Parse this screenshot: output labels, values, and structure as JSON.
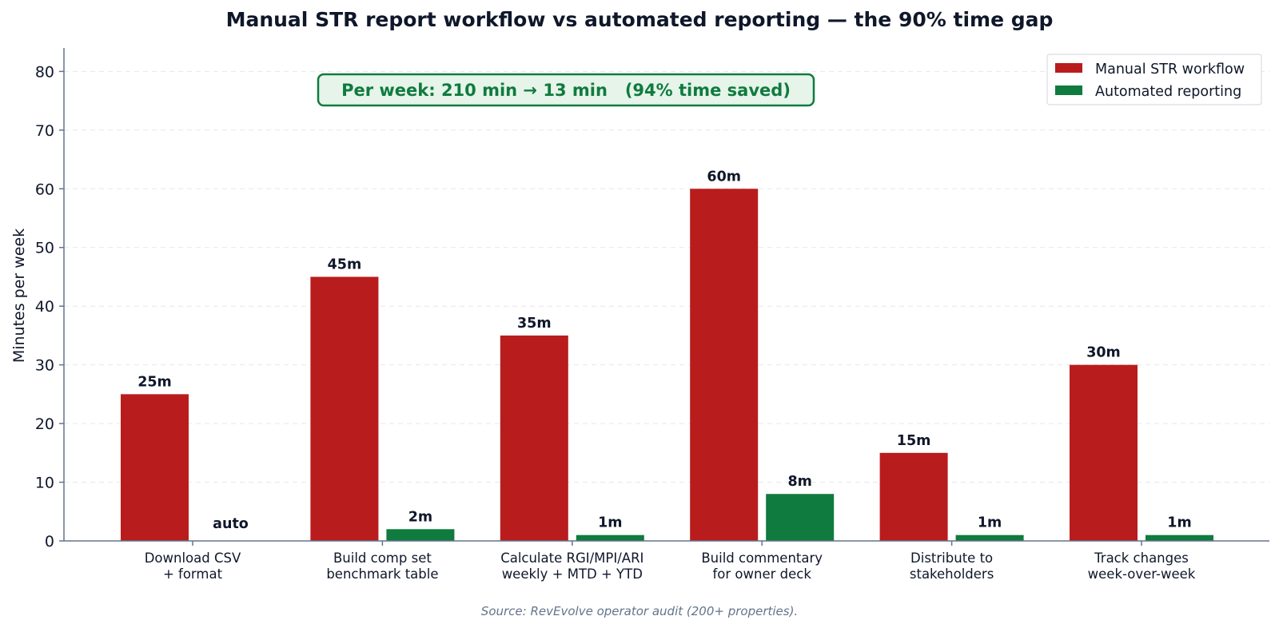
{
  "chart_data": {
    "type": "bar",
    "title": "Manual STR report workflow vs automated reporting — the 90% time gap",
    "ylabel": "Minutes per week",
    "xlabel": "",
    "ylim": [
      0,
      84
    ],
    "yticks": [
      0,
      10,
      20,
      30,
      40,
      50,
      60,
      70,
      80
    ],
    "grid": "y-dashed",
    "categories": [
      [
        "Download CSV",
        "+ format"
      ],
      [
        "Build comp set",
        "benchmark table"
      ],
      [
        "Calculate RGI/MPI/ARI",
        "weekly + MTD + YTD"
      ],
      [
        "Build commentary",
        "for owner deck"
      ],
      [
        "Distribute to",
        "stakeholders"
      ],
      [
        "Track changes",
        "week-over-week"
      ]
    ],
    "series": [
      {
        "name": "Manual STR workflow",
        "color": "#b91c1c",
        "values": [
          25,
          45,
          35,
          60,
          15,
          30
        ],
        "labels": [
          "25m",
          "45m",
          "35m",
          "60m",
          "15m",
          "30m"
        ]
      },
      {
        "name": "Automated reporting",
        "color": "#0f7b3e",
        "values": [
          0,
          2,
          1,
          8,
          1,
          1
        ],
        "labels": [
          "auto",
          "2m",
          "1m",
          "8m",
          "1m",
          "1m"
        ]
      }
    ],
    "legend_position": "top-right",
    "annotation": "Per week: 210 min → 13 min   (94% time saved)",
    "source": "Source: RevEvolve operator audit (200+ properties)."
  },
  "colors": {
    "axis": "#64748b",
    "grid": "#e5e7eb",
    "callout_text": "#0f7b3e",
    "callout_fill": "#e6f4ea",
    "callout_border": "#0f7b3e"
  }
}
